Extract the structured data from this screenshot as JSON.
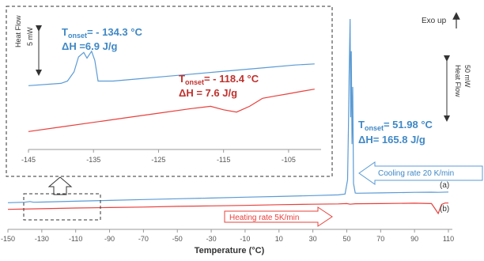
{
  "chart_data": [
    {
      "type": "line",
      "role": "main",
      "xlabel": "Temperature (°C)",
      "xlim": [
        -150,
        110
      ],
      "xticks": [
        -150,
        -130,
        -110,
        -90,
        -70,
        -50,
        -30,
        -10,
        10,
        30,
        50,
        70,
        90,
        110
      ],
      "series": [
        {
          "name": "(a)",
          "color": "#5b9bd5",
          "x": [
            -150,
            -140,
            -137,
            -135,
            -130,
            -110,
            -90,
            -70,
            -50,
            -30,
            -10,
            10,
            30,
            45,
            49,
            50.5,
            51,
            51.4,
            51.98,
            52.3,
            52.7,
            53.1,
            53.5,
            54,
            55,
            56,
            70,
            90,
            100,
            104,
            110
          ],
          "y": [
            -3.0,
            -2.7,
            -2.3,
            -2.7,
            -2.6,
            -2.1,
            -1.6,
            -1.1,
            -0.6,
            -0.2,
            0.3,
            0.7,
            1.2,
            1.6,
            2.1,
            10,
            40,
            70,
            100,
            45,
            82,
            30,
            62,
            8,
            2.6,
            2.5,
            2.7,
            3.0,
            3.1,
            3.0,
            3.2
          ]
        },
        {
          "name": "(b)",
          "color": "#e8403c",
          "x": [
            -150,
            -130,
            -110,
            -90,
            -70,
            -50,
            -30,
            -10,
            10,
            30,
            45,
            50,
            52,
            55,
            70,
            90,
            100,
            102,
            104,
            106,
            108,
            110
          ],
          "y": [
            -7.0,
            -6.6,
            -6.2,
            -5.9,
            -5.6,
            -5.2,
            -4.9,
            -4.6,
            -4.2,
            -3.9,
            -3.7,
            -3.5,
            -3.9,
            -3.6,
            -3.5,
            -3.3,
            -3.5,
            -6.5,
            -9.5,
            -4.0,
            -3.2,
            -3.2
          ]
        }
      ],
      "annotations": {
        "exo": "Exo up",
        "heat_flow": "Heat Flow",
        "scale_main": "50 mW",
        "onset_main": "T",
        "onset_sub": "onset",
        "onset_main_value": "= 51.98 °C",
        "dh_main": "ΔH= 165.8 J/g",
        "cooling": "Cooling rate 20 K/min",
        "heating": "Heating rate 5K/min",
        "label_a": "(a)",
        "label_b": "(b)"
      }
    },
    {
      "type": "line",
      "role": "inset",
      "xlim": [
        -145,
        -100
      ],
      "xticks": [
        -145,
        -135,
        -125,
        -115,
        -105
      ],
      "series": [
        {
          "name": "(a)",
          "color": "#5b9bd5",
          "x": [
            -145,
            -140,
            -139,
            -138,
            -137.3,
            -136.5,
            -136,
            -135.3,
            -134.8,
            -134.3,
            -132,
            -128,
            -124,
            -120,
            -116,
            -112,
            -108,
            -104,
            -101
          ],
          "y": [
            4.6,
            4.8,
            5.0,
            5.8,
            7.1,
            7.5,
            7.0,
            7.6,
            6.8,
            5.0,
            5.0,
            5.2,
            5.4,
            5.6,
            5.8,
            6.0,
            6.2,
            6.4,
            6.5
          ]
        },
        {
          "name": "(b)",
          "color": "#e8403c",
          "x": [
            -145,
            -140,
            -135,
            -130,
            -125,
            -120,
            -117,
            -115,
            -113,
            -111,
            -109,
            -107,
            -105,
            -103,
            -101
          ],
          "y": [
            0.6,
            1.0,
            1.4,
            1.8,
            2.2,
            2.6,
            2.8,
            2.5,
            2.3,
            2.8,
            3.5,
            3.7,
            3.9,
            4.1,
            4.3
          ]
        }
      ],
      "annotations": {
        "heat_flow": "Heat Flow",
        "scale": "5 mW",
        "onset_a": "T",
        "onset_a_sub": "onset",
        "onset_a_value": "= - 134.3 °C",
        "dh_a": "ΔH =6.9 J/g",
        "onset_b": "T",
        "onset_b_sub": "onset",
        "onset_b_value": "= - 118.4 °C",
        "dh_b": "ΔH = 7.6 J/g"
      }
    }
  ]
}
